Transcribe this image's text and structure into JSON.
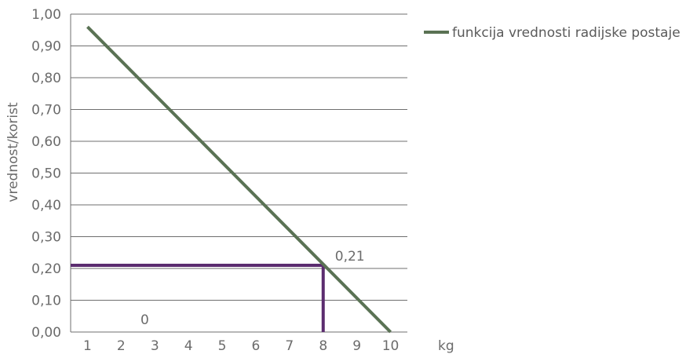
{
  "chart_data": {
    "type": "line",
    "title": "",
    "xlabel": "kg",
    "ylabel": "vrednost/korist",
    "xlim": [
      0.5,
      10.5
    ],
    "ylim": [
      0,
      1
    ],
    "x_ticks": [
      "1",
      "2",
      "3",
      "4",
      "5",
      "6",
      "7",
      "8",
      "9",
      "10"
    ],
    "y_ticks": [
      "0,00",
      "0,10",
      "0,20",
      "0,30",
      "0,40",
      "0,50",
      "0,60",
      "0,70",
      "0,80",
      "0,90",
      "1,00"
    ],
    "grid": "horizontal",
    "legend_position": "right",
    "series": [
      {
        "name": "funkcija vrednosti radijske postaje",
        "color": "#5a7254",
        "x": [
          1,
          10
        ],
        "y": [
          0.96,
          0.0
        ]
      }
    ],
    "reference_lines": {
      "color": "#5b2c6f",
      "point": {
        "x": 8,
        "y": 0.21
      },
      "label": "0,21"
    },
    "annotations": [
      {
        "text": "0",
        "x": 2.7,
        "y": 0.02
      }
    ]
  }
}
